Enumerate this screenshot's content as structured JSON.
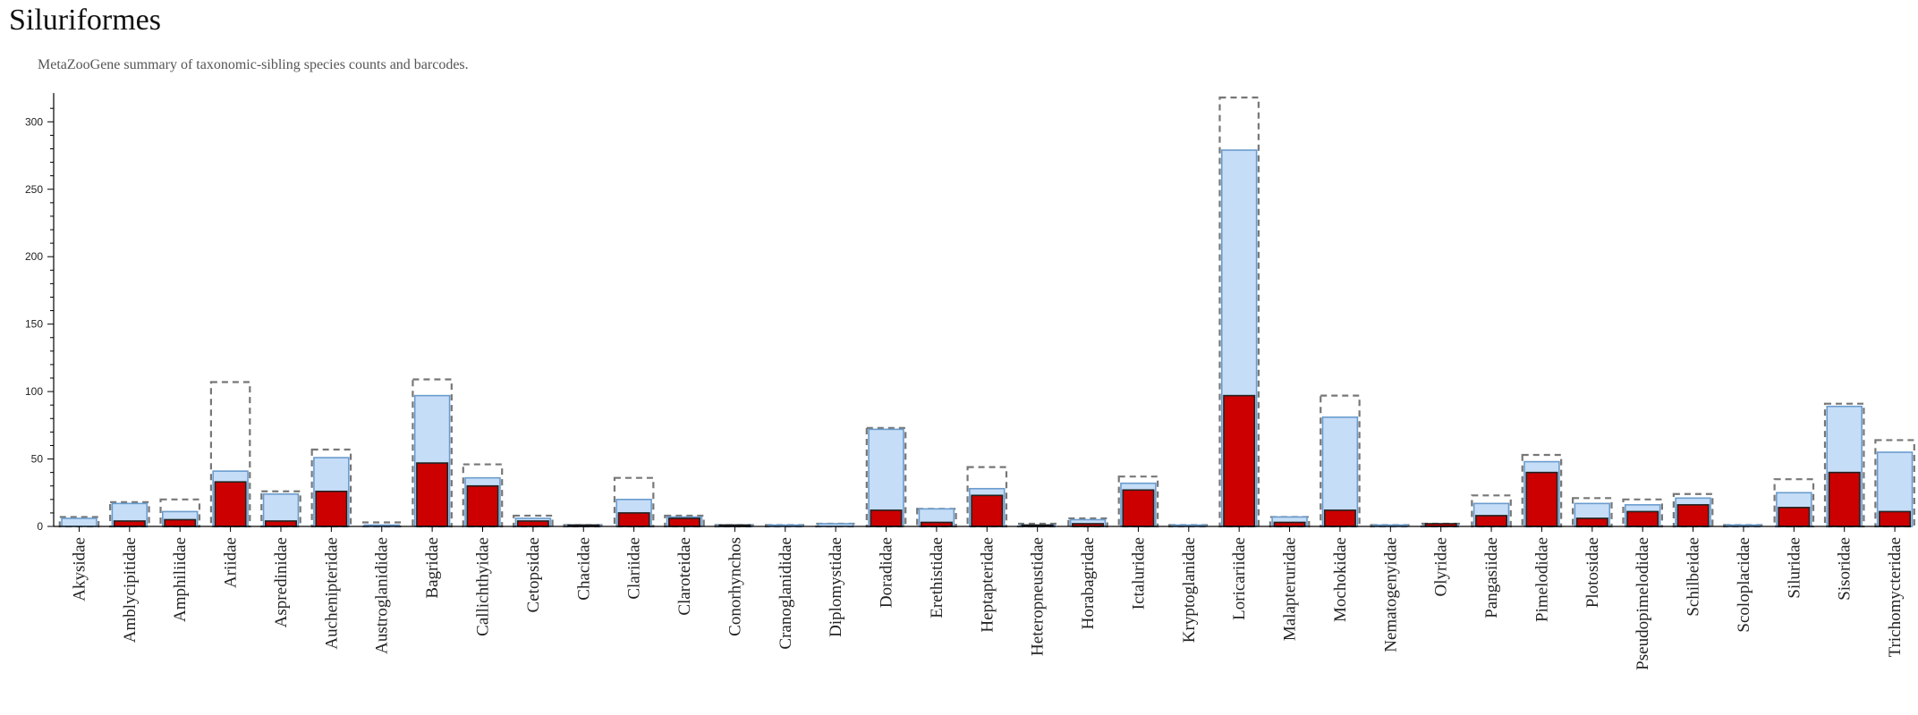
{
  "title": "Siluriformes",
  "subtitle": "MetaZooGene summary of taxonomic-sibling species counts and barcodes.",
  "colors": {
    "species_fill": "#c6ddf7",
    "species_stroke": "#6a9ccd",
    "barcode_fill": "#cc0000",
    "barcode_stroke": "#222222",
    "total_stroke": "#777777"
  },
  "chart_data": {
    "type": "bar",
    "title": "Siluriformes",
    "subtitle": "MetaZooGene summary of taxonomic-sibling species counts and barcodes.",
    "xlabel": "",
    "ylabel": "",
    "ylim": [
      0,
      320
    ],
    "yticks": [
      0,
      50,
      100,
      150,
      200,
      250,
      300
    ],
    "grid": false,
    "categories": [
      "Akysidae",
      "Amblycipitidae",
      "Amphiliidae",
      "Ariidae",
      "Aspredinidae",
      "Auchenipteridae",
      "Austroglanididae",
      "Bagridae",
      "Callichthyidae",
      "Cetopsidae",
      "Chacidae",
      "Clariidae",
      "Claroteidae",
      "Conorhynchos",
      "Cranoglanididae",
      "Diplomystidae",
      "Doradidae",
      "Erethistidae",
      "Heptapteridae",
      "Heteropneustidae",
      "Horabagridae",
      "Ictaluridae",
      "Kryptoglanidae",
      "Loricariidae",
      "Malapteruridae",
      "Mochokidae",
      "Nematogenyidae",
      "Olyridae",
      "Pangasiidae",
      "Pimelodidae",
      "Plotosidae",
      "Pseudopimelodidae",
      "Schilbeidae",
      "Scoloplacidae",
      "Siluridae",
      "Sisoridae",
      "Trichomycteridae"
    ],
    "series": [
      {
        "values": [
          7,
          18,
          20,
          107,
          26,
          57,
          3,
          109,
          46,
          8,
          1,
          36,
          8,
          1,
          1,
          2,
          73,
          13,
          44,
          2,
          6,
          37,
          1,
          318,
          7,
          97,
          1,
          2,
          23,
          53,
          21,
          20,
          24,
          1,
          35,
          91,
          64
        ]
      },
      {
        "values": [
          6,
          17,
          11,
          41,
          24,
          51,
          1,
          97,
          36,
          6,
          1,
          20,
          7,
          1,
          1,
          2,
          72,
          13,
          28,
          1,
          5,
          32,
          1,
          279,
          7,
          81,
          1,
          1,
          17,
          48,
          17,
          16,
          21,
          1,
          25,
          89,
          55
        ]
      },
      {
        "values": [
          0,
          4,
          5,
          33,
          4,
          26,
          0,
          47,
          30,
          4,
          1,
          10,
          6,
          1,
          0,
          0,
          12,
          3,
          23,
          1,
          2,
          27,
          0,
          97,
          3,
          12,
          0,
          2,
          8,
          40,
          6,
          11,
          16,
          0,
          14,
          40,
          11
        ]
      }
    ]
  }
}
